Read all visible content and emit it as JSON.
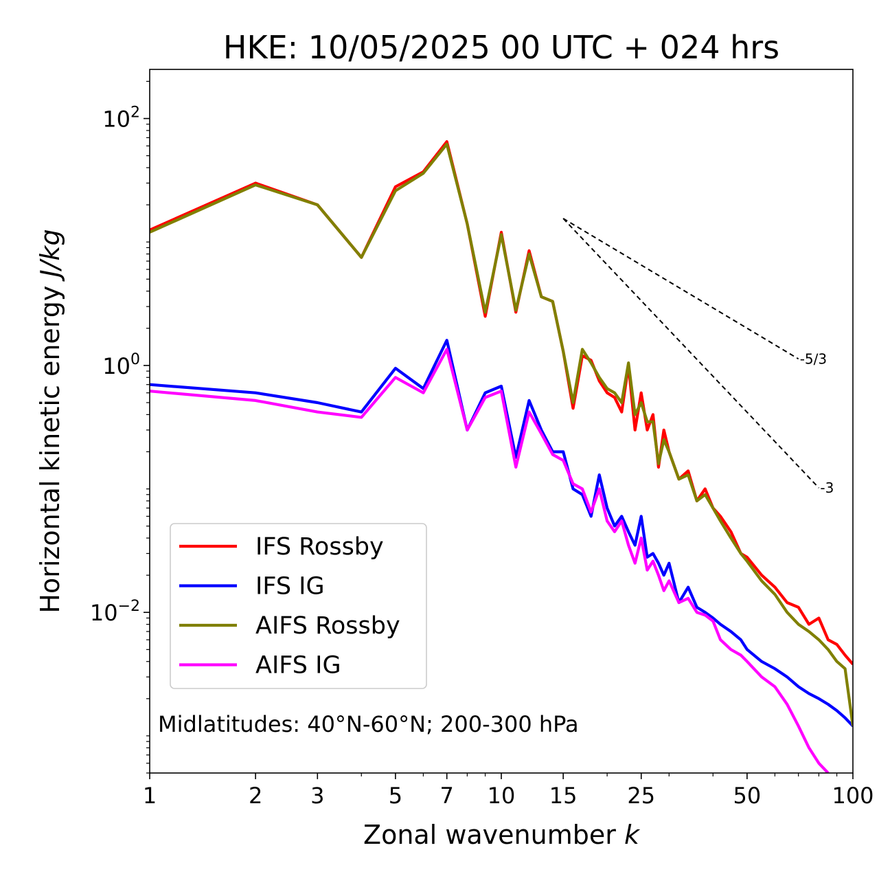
{
  "chart_data": {
    "type": "line",
    "title": "HKE: 10/05/2025 00 UTC + 024 hrs",
    "xlabel": "Zonal wavenumber",
    "xlabel_var": "k",
    "ylabel": "Horizontal kinetic energy",
    "ylabel_unit": "J/kg",
    "x_scale": "log",
    "y_scale": "log",
    "xlim": [
      1,
      100
    ],
    "ylim": [
      0.0005,
      250
    ],
    "x_ticks": [
      1,
      2,
      3,
      5,
      7,
      10,
      15,
      25,
      50,
      100
    ],
    "x_tick_labels": [
      "1",
      "2",
      "3",
      "5",
      "7",
      "10",
      "15",
      "25",
      "50",
      "100"
    ],
    "y_ticks": [
      100,
      1,
      0.01
    ],
    "y_tick_labels": [
      {
        "base": "10",
        "exp": "2"
      },
      {
        "base": "10",
        "exp": "0"
      },
      {
        "base": "10",
        "exp": "−2"
      }
    ],
    "grid": false,
    "legend": "lower-left",
    "annotation": "Midlatitudes: 40°N-60°N; 200-300 hPa",
    "reference_lines": [
      {
        "label": "-5/3",
        "slope": -1.6667,
        "x0": 15,
        "y0": 15.5,
        "x1": 70,
        "y1": 1.13
      },
      {
        "label": "-3",
        "slope": -3,
        "x0": 15,
        "y0": 15.5,
        "x1": 80,
        "y1": 0.102
      }
    ],
    "series": [
      {
        "name": "IFS Rossby",
        "color": "#ff0000",
        "x": [
          1,
          2,
          3,
          4,
          5,
          6,
          7,
          8,
          9,
          10,
          11,
          12,
          13,
          14,
          15,
          16,
          17,
          18,
          19,
          20,
          21,
          22,
          23,
          24,
          25,
          26,
          27,
          28,
          29,
          30,
          32,
          34,
          36,
          38,
          40,
          42,
          45,
          48,
          50,
          55,
          60,
          65,
          70,
          75,
          80,
          85,
          90,
          95,
          100
        ],
        "y": [
          12.5,
          30,
          20,
          7.5,
          28,
          37,
          65,
          14,
          2.5,
          12,
          2.7,
          8.5,
          3.6,
          3.3,
          1.3,
          0.45,
          1.2,
          1.1,
          0.75,
          0.6,
          0.55,
          0.42,
          1.0,
          0.3,
          0.6,
          0.3,
          0.4,
          0.15,
          0.3,
          0.2,
          0.12,
          0.14,
          0.08,
          0.1,
          0.07,
          0.06,
          0.045,
          0.03,
          0.028,
          0.02,
          0.016,
          0.012,
          0.011,
          0.008,
          0.009,
          0.006,
          0.0055,
          0.0045,
          0.0038
        ]
      },
      {
        "name": "IFS IG",
        "color": "#0000ff",
        "x": [
          1,
          2,
          3,
          4,
          5,
          6,
          7,
          8,
          9,
          10,
          11,
          12,
          13,
          14,
          15,
          16,
          17,
          18,
          19,
          20,
          21,
          22,
          23,
          24,
          25,
          26,
          27,
          28,
          29,
          30,
          32,
          34,
          36,
          38,
          40,
          42,
          45,
          48,
          50,
          55,
          60,
          65,
          70,
          75,
          80,
          85,
          90,
          95,
          100
        ],
        "y": [
          0.7,
          0.6,
          0.5,
          0.42,
          0.95,
          0.65,
          1.6,
          0.3,
          0.6,
          0.68,
          0.18,
          0.52,
          0.3,
          0.2,
          0.2,
          0.1,
          0.09,
          0.06,
          0.13,
          0.07,
          0.05,
          0.06,
          0.045,
          0.035,
          0.06,
          0.028,
          0.03,
          0.025,
          0.02,
          0.025,
          0.012,
          0.016,
          0.011,
          0.01,
          0.009,
          0.008,
          0.007,
          0.006,
          0.005,
          0.004,
          0.0035,
          0.003,
          0.0025,
          0.0022,
          0.002,
          0.0018,
          0.0016,
          0.0014,
          0.0012
        ]
      },
      {
        "name": "AIFS Rossby",
        "color": "#808000",
        "x": [
          1,
          2,
          3,
          4,
          5,
          6,
          7,
          8,
          9,
          10,
          11,
          12,
          13,
          14,
          15,
          16,
          17,
          18,
          19,
          20,
          21,
          22,
          23,
          24,
          25,
          26,
          27,
          28,
          29,
          30,
          32,
          34,
          36,
          38,
          40,
          42,
          45,
          48,
          50,
          55,
          60,
          65,
          70,
          75,
          80,
          85,
          90,
          95,
          100
        ],
        "y": [
          12,
          29,
          20,
          7.5,
          26,
          36,
          62,
          14,
          2.7,
          11.5,
          2.8,
          8,
          3.6,
          3.3,
          1.3,
          0.5,
          1.35,
          1.05,
          0.8,
          0.65,
          0.6,
          0.5,
          1.05,
          0.4,
          0.5,
          0.35,
          0.35,
          0.16,
          0.25,
          0.2,
          0.12,
          0.13,
          0.08,
          0.09,
          0.07,
          0.055,
          0.04,
          0.03,
          0.026,
          0.018,
          0.014,
          0.01,
          0.008,
          0.007,
          0.006,
          0.005,
          0.004,
          0.0035,
          0.0012
        ]
      },
      {
        "name": "AIFS IG",
        "color": "#ff00ff",
        "x": [
          1,
          2,
          3,
          4,
          5,
          6,
          7,
          8,
          9,
          10,
          11,
          12,
          13,
          14,
          15,
          16,
          17,
          18,
          19,
          20,
          21,
          22,
          23,
          24,
          25,
          26,
          27,
          28,
          29,
          30,
          32,
          34,
          36,
          38,
          40,
          42,
          45,
          48,
          50,
          55,
          60,
          65,
          70,
          75,
          80,
          85
        ],
        "y": [
          0.62,
          0.52,
          0.42,
          0.38,
          0.8,
          0.6,
          1.35,
          0.3,
          0.55,
          0.62,
          0.15,
          0.42,
          0.28,
          0.19,
          0.17,
          0.11,
          0.1,
          0.065,
          0.1,
          0.055,
          0.045,
          0.055,
          0.035,
          0.025,
          0.04,
          0.022,
          0.026,
          0.02,
          0.015,
          0.018,
          0.012,
          0.013,
          0.01,
          0.0095,
          0.0085,
          0.006,
          0.005,
          0.0045,
          0.004,
          0.003,
          0.0025,
          0.0018,
          0.0012,
          0.0008,
          0.0006,
          0.0005
        ]
      }
    ]
  }
}
